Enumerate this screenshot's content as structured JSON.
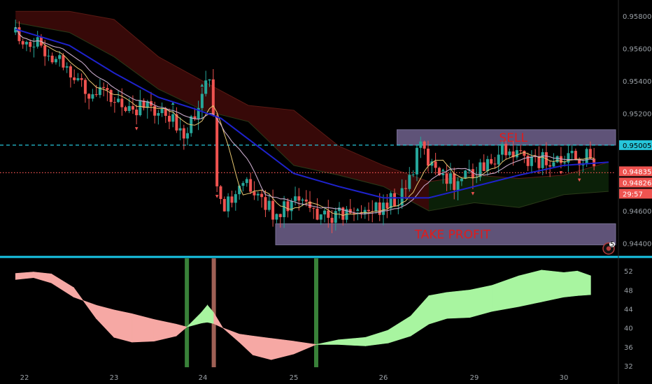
{
  "colors": {
    "background": "#000000",
    "candle_up": "#26a69a",
    "candle_down": "#ef5350",
    "ma_slow": "#1e22cc",
    "ma_fast": "#c7a9c9",
    "ma_mid": "#e8c872",
    "cloud_bear": "#3a0a08",
    "cloud_bull": "#0c2208",
    "zone_fill": "#7a6b9a",
    "zone_text": "#e01b1b",
    "price_line": "#26c6da",
    "current_line": "#ef5350",
    "osc_bear": "#f6a8a4",
    "osc_bull": "#a8f5a0",
    "axis_text": "#9aa0a6",
    "separator": "#19c6e6"
  },
  "chart_data": [
    {
      "type": "candlestick",
      "title": "",
      "x_tick_labels": [
        "22",
        "23",
        "24",
        "25",
        "26",
        "29",
        "30"
      ],
      "y_tick_labels": [
        "0.95800",
        "0.95600",
        "0.95400",
        "0.95200",
        "0.95005",
        "0.94835",
        "0.94826",
        "0.94600",
        "0.94400"
      ],
      "ylim": [
        0.9435,
        0.959
      ],
      "price_levels": [
        {
          "label": "0.95005",
          "value": 0.95005,
          "style": "dashed",
          "color": "#26c6da"
        },
        {
          "label": "0.94835",
          "value": 0.94835,
          "style": "dotted",
          "color": "#ef5350"
        },
        {
          "label": "0.94826",
          "value": 0.94826,
          "style": "none",
          "color": "#ef5350"
        }
      ],
      "countdown": "29:57",
      "zones": [
        {
          "label": "SELL",
          "x_start": 26.15,
          "x_end": 30.6,
          "y_top": 0.951,
          "y_bottom": 0.95005
        },
        {
          "label": "TAKE PROFIT",
          "x_start": 24.8,
          "x_end": 30.6,
          "y_top": 0.9452,
          "y_bottom": 0.9439
        }
      ],
      "trend_path": [
        [
          21.9,
          0.957
        ],
        [
          22.3,
          0.9558
        ],
        [
          22.7,
          0.9535
        ],
        [
          23.0,
          0.9527
        ],
        [
          23.4,
          0.9522
        ],
        [
          23.8,
          0.951
        ],
        [
          24.05,
          0.9538
        ],
        [
          24.1,
          0.9532
        ],
        [
          24.15,
          0.947
        ],
        [
          24.3,
          0.9462
        ],
        [
          24.5,
          0.9478
        ],
        [
          24.6,
          0.9468
        ],
        [
          24.8,
          0.9459
        ],
        [
          25.0,
          0.9466
        ],
        [
          25.3,
          0.9458
        ],
        [
          25.5,
          0.9456
        ],
        [
          25.7,
          0.946
        ],
        [
          26.0,
          0.9462
        ],
        [
          26.2,
          0.947
        ],
        [
          26.4,
          0.9498
        ],
        [
          26.6,
          0.9485
        ],
        [
          26.8,
          0.9478
        ],
        [
          27.1,
          0.9488
        ],
        [
          27.3,
          0.9497
        ],
        [
          27.6,
          0.9492
        ],
        [
          28.0,
          0.949
        ],
        [
          28.25,
          0.9493
        ],
        [
          28.35,
          0.9484
        ]
      ],
      "ma_slow_path": [
        [
          21.9,
          0.9572
        ],
        [
          22.5,
          0.9562
        ],
        [
          23.0,
          0.9545
        ],
        [
          23.5,
          0.953
        ],
        [
          23.9,
          0.9523
        ],
        [
          24.2,
          0.9517
        ],
        [
          24.6,
          0.95
        ],
        [
          25.0,
          0.9483
        ],
        [
          25.5,
          0.9475
        ],
        [
          26.0,
          0.9468
        ],
        [
          26.5,
          0.9468
        ],
        [
          27.0,
          0.9475
        ],
        [
          27.5,
          0.9482
        ],
        [
          28.0,
          0.9488
        ],
        [
          28.5,
          0.949
        ]
      ],
      "cloud_path": [
        [
          21.9,
          0.9583,
          0.9576
        ],
        [
          22.5,
          0.9583,
          0.957
        ],
        [
          23.0,
          0.9578,
          0.9555
        ],
        [
          23.5,
          0.9555,
          0.9535
        ],
        [
          24.0,
          0.954,
          0.9522
        ],
        [
          24.5,
          0.9525,
          0.9515
        ],
        [
          25.0,
          0.9522,
          0.9488
        ],
        [
          25.5,
          0.95,
          0.9482
        ],
        [
          26.0,
          0.9488,
          0.9475
        ],
        [
          26.5,
          0.9478,
          0.946
        ],
        [
          27.0,
          0.9482,
          0.9465
        ],
        [
          27.5,
          0.948,
          0.9462
        ],
        [
          28.0,
          0.9482,
          0.947
        ],
        [
          28.5,
          0.949,
          0.9472
        ]
      ]
    },
    {
      "type": "area",
      "title": "",
      "x_tick_labels": [
        "22",
        "23",
        "24",
        "25",
        "26",
        "29",
        "30"
      ],
      "y_tick_labels": [
        "52",
        "48",
        "44",
        "40",
        "36",
        "32"
      ],
      "ylim": [
        32,
        53.5
      ],
      "series": [
        {
          "values": [
            [
              21.9,
              51.5,
              50.2
            ],
            [
              22.1,
              51.8,
              50.6
            ],
            [
              22.3,
              51.4,
              49.5
            ],
            [
              22.55,
              48.5,
              46.5
            ],
            [
              22.8,
              42.0,
              44.8
            ],
            [
              23.0,
              38.0,
              43.8
            ],
            [
              23.2,
              37.0,
              43.0
            ],
            [
              23.45,
              37.2,
              41.8
            ],
            [
              23.7,
              38.3,
              40.8
            ],
            [
              23.82,
              40.2,
              40.2
            ],
            [
              23.98,
              41.0,
              43.2
            ],
            [
              24.05,
              41.2,
              44.8
            ],
            [
              24.12,
              40.9,
              43.2
            ],
            [
              24.22,
              40.0,
              40.0
            ],
            [
              24.4,
              37.0,
              38.7
            ],
            [
              24.55,
              34.3,
              38.3
            ],
            [
              24.75,
              33.3,
              37.8
            ],
            [
              25.0,
              34.5,
              37.2
            ],
            [
              25.25,
              36.5,
              36.5
            ],
            [
              25.5,
              36.5,
              37.5
            ],
            [
              25.8,
              36.2,
              38.0
            ],
            [
              26.05,
              36.8,
              39.5
            ],
            [
              26.3,
              38.3,
              42.5
            ],
            [
              26.5,
              40.8,
              46.8
            ],
            [
              26.7,
              42.0,
              47.5
            ],
            [
              26.95,
              42.2,
              48.0
            ],
            [
              27.2,
              43.5,
              49.0
            ],
            [
              27.5,
              44.5,
              51.0
            ],
            [
              27.75,
              45.5,
              52.2
            ],
            [
              28.0,
              46.5,
              51.7
            ],
            [
              28.15,
              46.8,
              52.0
            ],
            [
              28.3,
              47.0,
              51.0
            ]
          ]
        }
      ],
      "signal_bars": [
        {
          "x": 23.82,
          "kind": "bull"
        },
        {
          "x": 24.12,
          "kind": "bear"
        },
        {
          "x": 25.25,
          "kind": "bull"
        }
      ]
    }
  ]
}
